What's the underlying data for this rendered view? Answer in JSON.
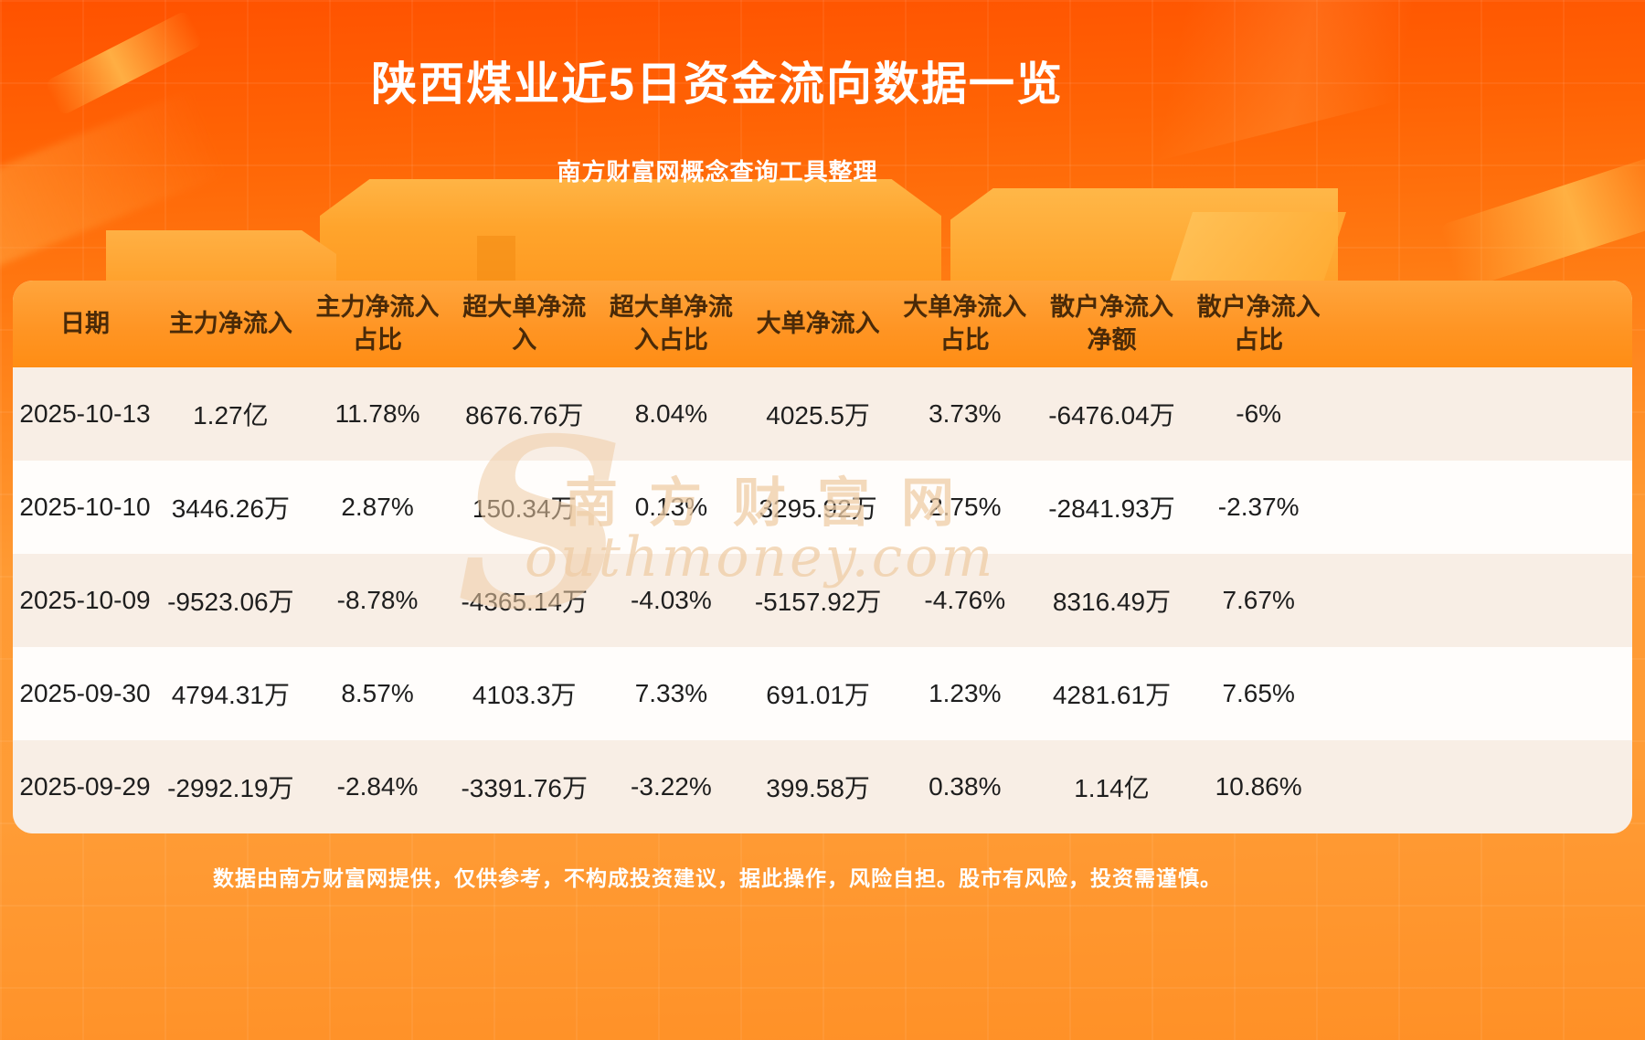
{
  "header": {
    "title": "陕西煤业近5日资金流向数据一览",
    "subtitle": "南方财富网概念查询工具整理"
  },
  "table": {
    "columns": [
      "日期",
      "主力净流入",
      "主力净流入\n占比",
      "超大单净流\n入",
      "超大单净流\n入占比",
      "大单净流入",
      "大单净流入\n占比",
      "散户净流入\n净额",
      "散户净流入\n占比"
    ]
  },
  "chart_data": {
    "type": "table",
    "title": "陕西煤业近5日资金流向数据一览",
    "columns": [
      "日期",
      "主力净流入",
      "主力净流入占比",
      "超大单净流入",
      "超大单净流入占比",
      "大单净流入",
      "大单净流入占比",
      "散户净流入净额",
      "散户净流入占比"
    ],
    "rows": [
      [
        "2025-10-13",
        "1.27亿",
        "11.78%",
        "8676.76万",
        "8.04%",
        "4025.5万",
        "3.73%",
        "-6476.04万",
        "-6%"
      ],
      [
        "2025-10-10",
        "3446.26万",
        "2.87%",
        "150.34万",
        "0.13%",
        "3295.92万",
        "2.75%",
        "-2841.93万",
        "-2.37%"
      ],
      [
        "2025-10-09",
        "-9523.06万",
        "-8.78%",
        "-4365.14万",
        "-4.03%",
        "-5157.92万",
        "-4.76%",
        "8316.49万",
        "7.67%"
      ],
      [
        "2025-09-30",
        "4794.31万",
        "8.57%",
        "4103.3万",
        "7.33%",
        "691.01万",
        "1.23%",
        "4281.61万",
        "7.65%"
      ],
      [
        "2025-09-29",
        "-2992.19万",
        "-2.84%",
        "-3391.76万",
        "-3.22%",
        "399.58万",
        "0.38%",
        "1.14亿",
        "10.86%"
      ]
    ]
  },
  "watermark": {
    "initial": "S",
    "cn": "南方财富网",
    "en": "outhmoney.com"
  },
  "footer": {
    "disclaimer": "数据由南方财富网提供，仅供参考，不构成投资建议，据此操作，风险自担。股市有风险，投资需谨慎。"
  },
  "theme": {
    "bg_top": "#ff5200",
    "bg_main": "#ff9a33",
    "header_row_bg": "#ff9524",
    "header_text": "#4a2a08",
    "stripe_warm": "#f8eee5",
    "stripe_light": "#fffdfb",
    "body_text": "#1e1e1e",
    "title_color": "#ffffff",
    "watermark_color": "#efcda6"
  }
}
